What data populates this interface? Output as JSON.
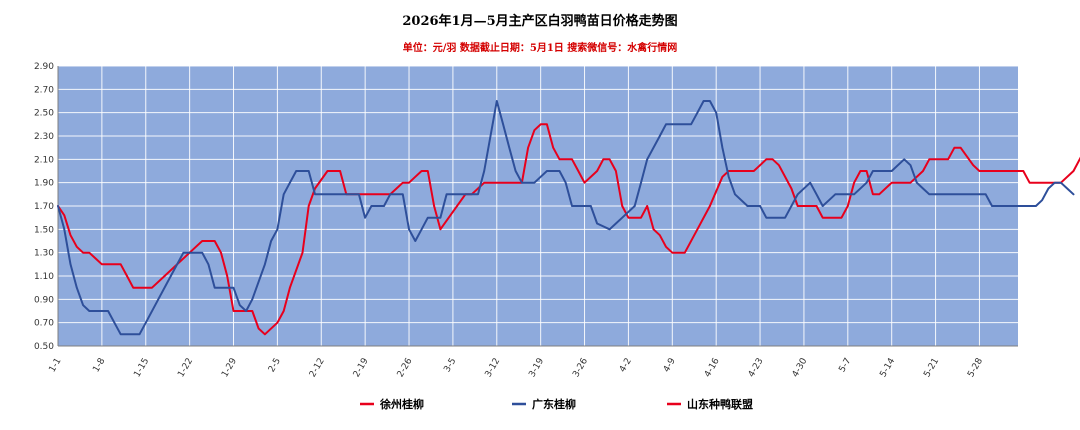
{
  "chart_data": {
    "type": "line",
    "title": "2026年1月—5月主产区白羽鸭苗日价格走势图",
    "subtitle": "单位：元/羽   数据截止日期：5月1日   搜索微信号：水禽行情网",
    "xlabel": "",
    "ylabel": "",
    "ylim": [
      0.5,
      2.9
    ],
    "yticks": [
      "0.50",
      "0.70",
      "0.90",
      "1.10",
      "1.30",
      "1.50",
      "1.70",
      "1.90",
      "2.10",
      "2.30",
      "2.50",
      "2.70",
      "2.90"
    ],
    "x_categories": [
      "1-1",
      "1-8",
      "1-15",
      "1-22",
      "1-29",
      "2-5",
      "2-12",
      "2-19",
      "2-26",
      "3-5",
      "3-12",
      "3-19",
      "3-26",
      "4-2",
      "4-9",
      "4-16",
      "4-23",
      "4-30",
      "5-7",
      "5-14",
      "5-21",
      "5-28"
    ],
    "grid": true,
    "legend_position": "bottom",
    "background_color": "#8eaadc",
    "series": [
      {
        "name": "徐州桂柳",
        "color": "#e8001c",
        "points": [
          [
            0,
            1.7
          ],
          [
            1,
            1.62
          ],
          [
            2,
            1.45
          ],
          [
            3,
            1.35
          ],
          [
            4,
            1.3
          ],
          [
            5,
            1.3
          ],
          [
            6,
            1.25
          ],
          [
            7,
            1.2
          ],
          [
            9,
            1.2
          ],
          [
            10,
            1.2
          ],
          [
            11,
            1.1
          ],
          [
            12,
            1.0
          ],
          [
            15,
            1.0
          ],
          [
            17,
            1.1
          ],
          [
            19,
            1.2
          ],
          [
            21,
            1.3
          ],
          [
            22,
            1.35
          ],
          [
            23,
            1.4
          ],
          [
            25,
            1.4
          ],
          [
            26,
            1.3
          ],
          [
            27,
            1.1
          ],
          [
            28,
            0.8
          ],
          [
            31,
            0.8
          ],
          [
            32,
            0.65
          ],
          [
            33,
            0.6
          ],
          [
            35,
            0.7
          ],
          [
            36,
            0.8
          ],
          [
            37,
            1.0
          ],
          [
            39,
            1.3
          ],
          [
            40,
            1.7
          ],
          [
            41,
            1.85
          ],
          [
            43,
            2.0
          ],
          [
            45,
            2.0
          ],
          [
            46,
            1.8
          ],
          [
            53,
            1.8
          ],
          [
            54,
            1.85
          ],
          [
            55,
            1.9
          ],
          [
            56,
            1.9
          ],
          [
            57,
            1.95
          ],
          [
            58,
            2.0
          ],
          [
            59,
            2.0
          ],
          [
            60,
            1.7
          ],
          [
            61,
            1.5
          ],
          [
            63,
            1.65
          ],
          [
            65,
            1.8
          ],
          [
            66,
            1.8
          ],
          [
            67,
            1.85
          ],
          [
            68,
            1.9
          ],
          [
            74,
            1.9
          ],
          [
            75,
            2.2
          ],
          [
            76,
            2.35
          ],
          [
            77,
            2.4
          ],
          [
            78,
            2.4
          ],
          [
            79,
            2.2
          ],
          [
            80,
            2.1
          ],
          [
            82,
            2.1
          ],
          [
            83,
            2.0
          ],
          [
            84,
            1.9
          ],
          [
            86,
            2.0
          ],
          [
            87,
            2.1
          ],
          [
            88,
            2.1
          ],
          [
            89,
            2.0
          ],
          [
            90,
            1.7
          ],
          [
            91,
            1.6
          ],
          [
            93,
            1.6
          ],
          [
            94,
            1.7
          ],
          [
            95,
            1.5
          ],
          [
            96,
            1.45
          ],
          [
            97,
            1.35
          ],
          [
            98,
            1.3
          ],
          [
            100,
            1.3
          ],
          [
            102,
            1.5
          ],
          [
            104,
            1.7
          ],
          [
            106,
            1.95
          ],
          [
            107,
            2.0
          ],
          [
            111,
            2.0
          ],
          [
            112,
            2.05
          ],
          [
            113,
            2.1
          ],
          [
            114,
            2.1
          ],
          [
            115,
            2.05
          ],
          [
            117,
            1.85
          ],
          [
            118,
            1.7
          ],
          [
            121,
            1.7
          ],
          [
            122,
            1.6
          ],
          [
            125,
            1.6
          ],
          [
            126,
            1.7
          ],
          [
            127,
            1.9
          ],
          [
            128,
            2.0
          ],
          [
            129,
            2.0
          ],
          [
            130,
            1.8
          ],
          [
            131,
            1.8
          ],
          [
            133,
            1.9
          ],
          [
            136,
            1.9
          ],
          [
            138,
            2.0
          ],
          [
            139,
            2.1
          ],
          [
            142,
            2.1
          ],
          [
            143,
            2.2
          ],
          [
            144,
            2.2
          ],
          [
            146,
            2.05
          ],
          [
            147,
            2.0
          ],
          [
            154,
            2.0
          ],
          [
            155,
            1.9
          ],
          [
            160,
            1.9
          ],
          [
            162,
            2.0
          ],
          [
            163,
            2.1
          ],
          [
            164,
            2.2
          ],
          [
            165,
            2.2
          ],
          [
            166,
            2.1
          ]
        ]
      },
      {
        "name": "广东桂柳",
        "color": "#2e4f9a",
        "points": [
          [
            0,
            1.7
          ],
          [
            1,
            1.5
          ],
          [
            2,
            1.2
          ],
          [
            3,
            1.0
          ],
          [
            4,
            0.85
          ],
          [
            5,
            0.8
          ],
          [
            8,
            0.8
          ],
          [
            9,
            0.7
          ],
          [
            10,
            0.6
          ],
          [
            13,
            0.6
          ],
          [
            14,
            0.7
          ],
          [
            16,
            0.9
          ],
          [
            18,
            1.1
          ],
          [
            20,
            1.3
          ],
          [
            23,
            1.3
          ],
          [
            24,
            1.2
          ],
          [
            25,
            1.0
          ],
          [
            28,
            1.0
          ],
          [
            29,
            0.85
          ],
          [
            30,
            0.8
          ],
          [
            31,
            0.9
          ],
          [
            33,
            1.2
          ],
          [
            34,
            1.4
          ],
          [
            35,
            1.5
          ],
          [
            36,
            1.8
          ],
          [
            37,
            1.9
          ],
          [
            38,
            2.0
          ],
          [
            40,
            2.0
          ],
          [
            41,
            1.8
          ],
          [
            48,
            1.8
          ],
          [
            49,
            1.6
          ],
          [
            50,
            1.7
          ],
          [
            52,
            1.7
          ],
          [
            53,
            1.8
          ],
          [
            55,
            1.8
          ],
          [
            56,
            1.5
          ],
          [
            57,
            1.4
          ],
          [
            58,
            1.5
          ],
          [
            59,
            1.6
          ],
          [
            61,
            1.6
          ],
          [
            62,
            1.8
          ],
          [
            67,
            1.8
          ],
          [
            68,
            2.0
          ],
          [
            69,
            2.3
          ],
          [
            70,
            2.6
          ],
          [
            71,
            2.4
          ],
          [
            72,
            2.2
          ],
          [
            73,
            2.0
          ],
          [
            74,
            1.9
          ],
          [
            76,
            1.9
          ],
          [
            78,
            2.0
          ],
          [
            80,
            2.0
          ],
          [
            81,
            1.9
          ],
          [
            82,
            1.7
          ],
          [
            85,
            1.7
          ],
          [
            86,
            1.55
          ],
          [
            88,
            1.5
          ],
          [
            89,
            1.55
          ],
          [
            90,
            1.6
          ],
          [
            92,
            1.7
          ],
          [
            93,
            1.9
          ],
          [
            94,
            2.1
          ],
          [
            96,
            2.3
          ],
          [
            97,
            2.4
          ],
          [
            101,
            2.4
          ],
          [
            102,
            2.5
          ],
          [
            103,
            2.6
          ],
          [
            104,
            2.6
          ],
          [
            105,
            2.5
          ],
          [
            106,
            2.2
          ],
          [
            107,
            1.95
          ],
          [
            108,
            1.8
          ],
          [
            110,
            1.7
          ],
          [
            112,
            1.7
          ],
          [
            113,
            1.6
          ],
          [
            116,
            1.6
          ],
          [
            118,
            1.8
          ],
          [
            120,
            1.9
          ],
          [
            121,
            1.8
          ],
          [
            122,
            1.7
          ],
          [
            123,
            1.75
          ],
          [
            124,
            1.8
          ],
          [
            127,
            1.8
          ],
          [
            129,
            1.9
          ],
          [
            130,
            2.0
          ],
          [
            133,
            2.0
          ],
          [
            135,
            2.1
          ],
          [
            136,
            2.05
          ],
          [
            137,
            1.9
          ],
          [
            138,
            1.85
          ],
          [
            139,
            1.8
          ],
          [
            148,
            1.8
          ],
          [
            149,
            1.7
          ],
          [
            156,
            1.7
          ],
          [
            157,
            1.75
          ],
          [
            158,
            1.85
          ],
          [
            159,
            1.9
          ],
          [
            160,
            1.9
          ],
          [
            161,
            1.85
          ],
          [
            162,
            1.8
          ]
        ]
      },
      {
        "name": "山东种鸭联盟",
        "color": "#e8001c",
        "points": []
      }
    ]
  }
}
